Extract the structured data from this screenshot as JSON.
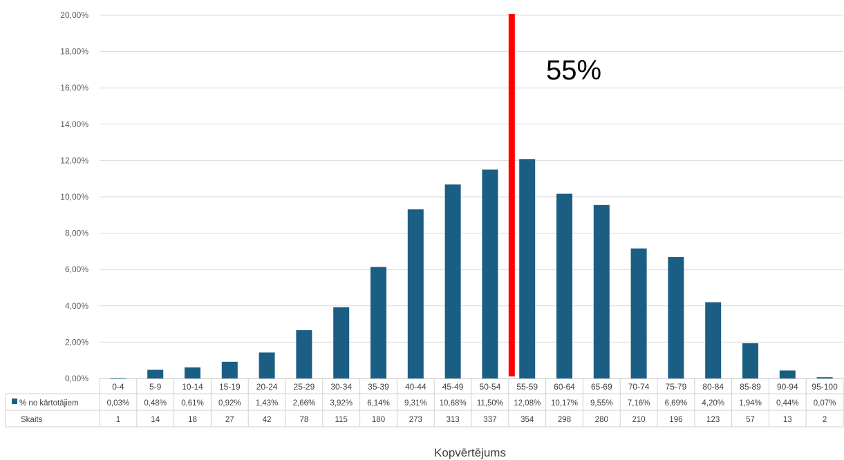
{
  "chart_data": {
    "type": "bar",
    "categories": [
      "0-4",
      "5-9",
      "10-14",
      "15-19",
      "20-24",
      "25-29",
      "30-34",
      "35-39",
      "40-44",
      "45-49",
      "50-54",
      "55-59",
      "60-64",
      "65-69",
      "70-74",
      "75-79",
      "80-84",
      "85-89",
      "90-94",
      "95-100"
    ],
    "series": [
      {
        "name": "% no kārtotājiem",
        "values": [
          0.03,
          0.48,
          0.61,
          0.92,
          1.43,
          2.66,
          3.92,
          6.14,
          9.31,
          10.68,
          11.5,
          12.08,
          10.17,
          9.55,
          7.16,
          6.69,
          4.2,
          1.94,
          0.44,
          0.07
        ],
        "labels": [
          "0,03%",
          "0,48%",
          "0,61%",
          "0,92%",
          "1,43%",
          "2,66%",
          "3,92%",
          "6,14%",
          "9,31%",
          "10,68%",
          "11,50%",
          "12,08%",
          "10,17%",
          "9,55%",
          "7,16%",
          "6,69%",
          "4,20%",
          "1,94%",
          "0,44%",
          "0,07%"
        ],
        "color": "#1b5e84"
      }
    ],
    "table_rows": [
      {
        "label": "Skaits",
        "values": [
          "1",
          "14",
          "18",
          "27",
          "42",
          "78",
          "115",
          "180",
          "273",
          "313",
          "337",
          "354",
          "298",
          "280",
          "210",
          "196",
          "123",
          "57",
          "13",
          "2"
        ]
      }
    ],
    "ylim": [
      0,
      20
    ],
    "yticks": [
      "0,00%",
      "2,00%",
      "4,00%",
      "6,00%",
      "8,00%",
      "10,00%",
      "12,00%",
      "14,00%",
      "16,00%",
      "18,00%",
      "20,00%"
    ],
    "xlabel": "Kopvērtējums",
    "ylabel": "",
    "grid": true,
    "annotation": {
      "text": "55%",
      "x": 55,
      "color": "#ff0000"
    }
  }
}
